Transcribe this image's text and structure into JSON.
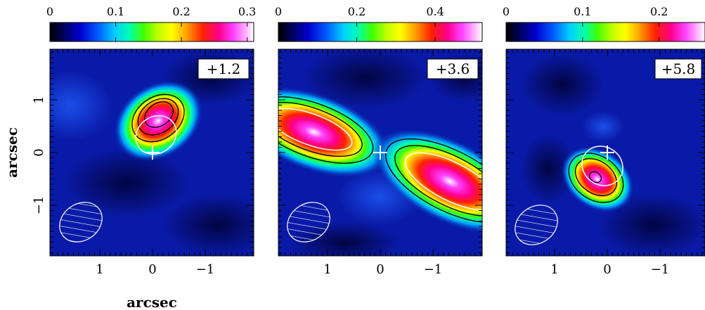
{
  "figure": {
    "axis_label_x": "arcsec",
    "axis_label_y": "arcsec",
    "y_tick_labels": [
      "1",
      "0",
      "−1"
    ],
    "panels": [
      {
        "velocity_label": "+1.2",
        "colorbar_ticks": [
          "0",
          "0.1",
          "0.2",
          "0.3"
        ],
        "colorbar_values": [
          0,
          0.1,
          0.2,
          0.3
        ],
        "colorbar_max": 0.31,
        "x_tick_labels": [
          "1",
          "0",
          "−1"
        ]
      },
      {
        "velocity_label": "+3.6",
        "colorbar_ticks": [
          "0",
          "0.2",
          "0.4"
        ],
        "colorbar_values": [
          0,
          0.2,
          0.4
        ],
        "colorbar_max": 0.52,
        "x_tick_labels": [
          "1",
          "0",
          "−1"
        ]
      },
      {
        "velocity_label": "+5.8",
        "colorbar_ticks": [
          "0",
          "0.1",
          "0.2"
        ],
        "colorbar_values": [
          0,
          0.1,
          0.2
        ],
        "colorbar_max": 0.26,
        "x_tick_labels": [
          "1",
          "0",
          "−1"
        ]
      }
    ],
    "colormap": [
      "#000000",
      "#000060",
      "#0000d0",
      "#0060ff",
      "#00d0ff",
      "#00ffb0",
      "#40ff00",
      "#c0ff00",
      "#ffff00",
      "#ffa000",
      "#ff2000",
      "#ff0090",
      "#ff40ff",
      "#ffb0ff",
      "#ffffff"
    ],
    "background_color": "#0a1aa8"
  }
}
